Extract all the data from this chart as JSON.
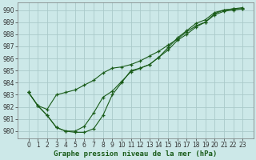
{
  "xlabel": "Graphe pression niveau de la mer (hPa)",
  "background_color": "#cce8e8",
  "grid_color": "#aacaca",
  "line_color": "#1a5c1a",
  "marker": "+",
  "x": [
    0,
    1,
    2,
    3,
    4,
    5,
    6,
    7,
    8,
    9,
    10,
    11,
    12,
    13,
    14,
    15,
    16,
    17,
    18,
    19,
    20,
    21,
    22,
    23
  ],
  "line1": [
    983.2,
    982.1,
    981.8,
    983.0,
    983.2,
    983.4,
    983.8,
    984.2,
    984.8,
    985.2,
    985.3,
    985.5,
    985.8,
    986.2,
    986.6,
    987.1,
    987.6,
    988.2,
    988.7,
    989.0,
    989.7,
    990.0,
    990.1,
    990.1
  ],
  "line2": [
    983.2,
    982.1,
    981.3,
    980.3,
    980.0,
    980.0,
    980.4,
    981.5,
    982.8,
    983.3,
    984.1,
    984.9,
    985.2,
    985.5,
    986.1,
    986.7,
    987.5,
    988.0,
    988.6,
    989.0,
    989.6,
    989.9,
    990.0,
    990.1
  ],
  "line3": [
    983.2,
    982.1,
    981.3,
    980.3,
    980.0,
    979.9,
    979.9,
    980.2,
    981.3,
    983.0,
    984.0,
    985.0,
    985.2,
    985.5,
    986.1,
    986.9,
    987.7,
    988.3,
    988.9,
    989.2,
    989.8,
    990.0,
    990.1,
    990.2
  ],
  "ylim": [
    979.4,
    990.6
  ],
  "yticks": [
    980,
    981,
    982,
    983,
    984,
    985,
    986,
    987,
    988,
    989,
    990
  ],
  "xticks": [
    0,
    1,
    2,
    3,
    4,
    5,
    6,
    7,
    8,
    9,
    10,
    11,
    12,
    13,
    14,
    15,
    16,
    17,
    18,
    19,
    20,
    21,
    22,
    23
  ],
  "xlabel_fontsize": 6.5,
  "tick_fontsize": 5.5,
  "xlabel_fontweight": "bold"
}
